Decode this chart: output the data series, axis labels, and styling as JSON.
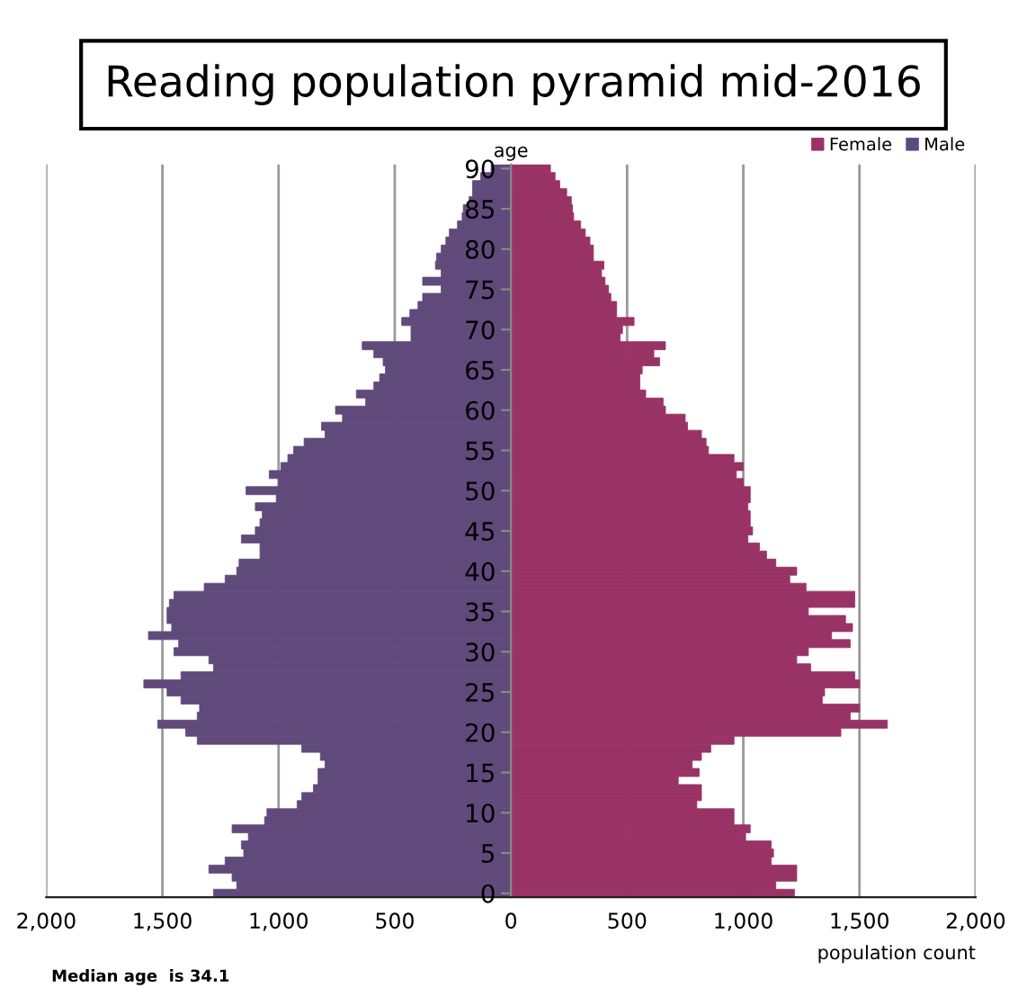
{
  "chart_data": {
    "type": "bar",
    "orientation": "horizontal",
    "stacked": true,
    "title": "Reading population pyramid mid-2016",
    "xlabel": "population count",
    "ylabel": "age",
    "annotations": [
      "Median age  is 34.1"
    ],
    "categories": [
      "90",
      null,
      null,
      null,
      null,
      "85",
      null,
      null,
      null,
      null,
      "80",
      null,
      null,
      null,
      null,
      "75",
      null,
      null,
      null,
      null,
      "70",
      null,
      null,
      null,
      null,
      "65",
      null,
      null,
      null,
      null,
      "60",
      null,
      null,
      null,
      null,
      "55",
      null,
      null,
      null,
      null,
      "50",
      null,
      null,
      null,
      null,
      "45",
      null,
      null,
      null,
      null,
      "40",
      null,
      null,
      null,
      null,
      "35",
      null,
      null,
      null,
      null,
      "30",
      null,
      null,
      null,
      null,
      "25",
      null,
      null,
      null,
      null,
      "20",
      null,
      null,
      null,
      null,
      "15",
      null,
      null,
      null,
      null,
      "10",
      null,
      null,
      null,
      null,
      "5",
      null,
      null,
      null,
      null,
      "0"
    ],
    "series": [
      {
        "name": "Female",
        "color": "#993366",
        "values": [
          170,
          190,
          210,
          240,
          260,
          265,
          270,
          300,
          320,
          340,
          355,
          355,
          400,
          390,
          405,
          420,
          430,
          455,
          455,
          530,
          480,
          470,
          665,
          615,
          640,
          565,
          555,
          555,
          580,
          655,
          665,
          750,
          760,
          820,
          840,
          850,
          960,
          1000,
          970,
          1000,
          1030,
          1030,
          1020,
          1030,
          1030,
          1040,
          1020,
          1070,
          1100,
          1140,
          1230,
          1200,
          1270,
          1480,
          1480,
          1280,
          1440,
          1470,
          1380,
          1460,
          1280,
          1230,
          1290,
          1480,
          1500,
          1350,
          1340,
          1500,
          1460,
          1620,
          1420,
          960,
          860,
          820,
          780,
          810,
          720,
          820,
          820,
          800,
          960,
          960,
          1030,
          1010,
          1120,
          1130,
          1120,
          1230,
          1230,
          1140,
          1220
        ]
      },
      {
        "name": "Male",
        "color": "#604a7b",
        "values": [
          -85,
          -130,
          -165,
          -165,
          -180,
          -205,
          -210,
          -230,
          -265,
          -280,
          -300,
          -320,
          -325,
          -300,
          -380,
          -300,
          -380,
          -400,
          -435,
          -470,
          -430,
          -430,
          -640,
          -590,
          -550,
          -540,
          -565,
          -590,
          -665,
          -625,
          -755,
          -725,
          -815,
          -800,
          -890,
          -935,
          -960,
          -990,
          -1040,
          -1000,
          -1140,
          -1010,
          -1100,
          -1070,
          -1080,
          -1100,
          -1160,
          -1080,
          -1080,
          -1170,
          -1180,
          -1230,
          -1320,
          -1450,
          -1470,
          -1480,
          -1480,
          -1460,
          -1560,
          -1430,
          -1450,
          -1300,
          -1280,
          -1420,
          -1580,
          -1480,
          -1420,
          -1340,
          -1350,
          -1520,
          -1400,
          -1350,
          -900,
          -820,
          -800,
          -830,
          -830,
          -850,
          -900,
          -920,
          -1050,
          -1060,
          -1200,
          -1130,
          -1160,
          -1150,
          -1230,
          -1300,
          -1200,
          -1180,
          -1280
        ]
      }
    ],
    "xlim": [
      -2000,
      2000
    ],
    "xticks": [
      {
        "value": -2000,
        "label": "2,000"
      },
      {
        "value": -1500,
        "label": "1,500"
      },
      {
        "value": -1000,
        "label": "1,000"
      },
      {
        "value": -500,
        "label": "500"
      },
      0,
      500,
      {
        "value": 1000,
        "label": "1,000"
      },
      {
        "value": 1500,
        "label": "1,500"
      },
      {
        "value": 2000,
        "label": "2,000"
      }
    ],
    "grid": "x",
    "legend": "top right"
  }
}
